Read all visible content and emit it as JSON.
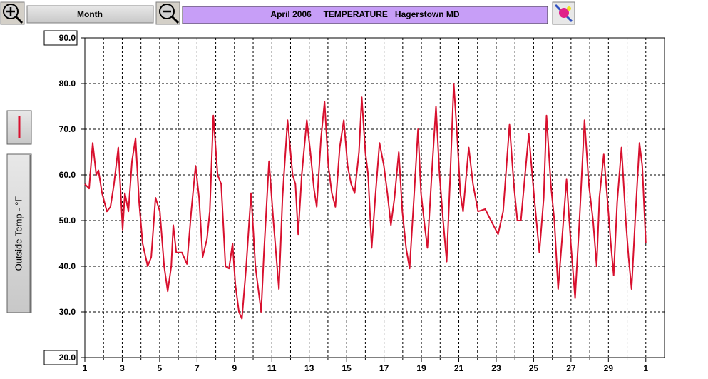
{
  "toolbar": {
    "period": "Month"
  },
  "chart_data": {
    "type": "line",
    "title": "April 2006     TEMPERATURE   Hagerstown MD",
    "y_label": "Outside Temp - °F",
    "x": [
      1.0,
      1.23,
      1.42,
      1.61,
      1.73,
      1.92,
      2.18,
      2.37,
      2.56,
      2.79,
      3.02,
      3.14,
      3.33,
      3.52,
      3.71,
      3.9,
      4.09,
      4.36,
      4.55,
      4.78,
      5.01,
      5.24,
      5.43,
      5.62,
      5.73,
      5.89,
      6.19,
      6.46,
      6.69,
      6.92,
      7.11,
      7.3,
      7.53,
      7.68,
      7.87,
      8.1,
      8.29,
      8.52,
      8.71,
      8.9,
      9.05,
      9.24,
      9.4,
      9.63,
      9.89,
      10.12,
      10.43,
      10.58,
      10.85,
      11.08,
      11.38,
      11.57,
      11.84,
      12.11,
      12.26,
      12.41,
      12.6,
      12.87,
      13.06,
      13.25,
      13.4,
      13.63,
      13.82,
      14.02,
      14.21,
      14.4,
      14.63,
      14.85,
      15.05,
      15.24,
      15.43,
      15.66,
      15.81,
      16.0,
      16.15,
      16.34,
      16.53,
      16.76,
      16.99,
      17.18,
      17.37,
      17.56,
      17.79,
      17.98,
      18.18,
      18.37,
      18.6,
      18.82,
      18.98,
      19.17,
      19.32,
      19.55,
      19.78,
      19.97,
      20.16,
      20.35,
      20.54,
      20.73,
      20.92,
      21.08,
      21.23,
      21.53,
      21.76,
      22.03,
      22.41,
      22.72,
      23.1,
      23.37,
      23.71,
      23.94,
      24.13,
      24.32,
      24.74,
      25.01,
      25.31,
      25.54,
      25.69,
      25.92,
      26.11,
      26.31,
      26.5,
      26.76,
      26.99,
      27.22,
      27.45,
      27.72,
      27.95,
      28.18,
      28.37,
      28.52,
      28.75,
      28.94,
      29.13,
      29.28,
      29.47,
      29.7,
      29.93,
      30.08,
      30.24,
      30.43,
      30.66,
      30.81,
      31.0
    ],
    "series": [
      {
        "color": "#d8102e",
        "values": [
          58,
          57,
          67,
          60,
          61,
          56,
          52,
          53,
          58,
          66,
          48,
          56,
          52,
          63,
          68,
          54,
          45,
          40,
          42,
          55,
          52,
          40,
          34.5,
          40,
          49,
          43,
          43,
          40.5,
          52,
          62,
          55,
          42,
          46,
          52,
          73,
          60,
          58,
          40,
          39.5,
          45,
          36,
          30,
          28.5,
          40,
          56,
          40,
          30,
          43,
          63,
          50,
          35,
          55,
          72,
          60,
          58,
          47,
          60,
          72,
          65,
          57,
          53,
          68,
          76,
          62,
          56,
          53,
          66,
          72,
          62,
          58,
          56,
          65,
          77,
          65,
          60,
          44,
          55,
          67,
          62,
          56,
          49,
          55,
          65,
          52,
          44,
          39.5,
          55,
          70,
          56,
          49,
          44,
          60,
          75,
          60,
          50,
          41,
          60,
          80,
          68,
          56,
          52,
          66,
          58,
          52,
          52.5,
          50,
          47,
          52,
          71,
          58,
          50,
          50,
          69,
          56,
          43,
          55,
          73,
          58,
          50,
          35,
          45,
          59,
          45,
          33,
          50,
          72,
          58,
          50,
          40,
          55,
          64.5,
          55,
          45,
          38,
          54,
          66,
          50,
          42,
          35,
          50,
          67,
          62,
          45
        ]
      }
    ],
    "xlim": [
      1,
      32
    ],
    "xticks": [
      1,
      3,
      5,
      7,
      9,
      11,
      13,
      15,
      17,
      19,
      21,
      23,
      25,
      27,
      29,
      {
        "value": 31,
        "label": "1"
      }
    ],
    "x_minor_ticks": [
      2,
      4,
      6,
      8,
      10,
      12,
      14,
      16,
      18,
      20,
      22,
      24,
      26,
      28,
      30
    ],
    "ylim": [
      20,
      90
    ],
    "yticks": [
      {
        "value": 20,
        "label": "20.0"
      },
      {
        "value": 30,
        "label": "30.0"
      },
      {
        "value": 40,
        "label": "40.0"
      },
      {
        "value": 50,
        "label": "50.0"
      },
      {
        "value": 60,
        "label": "60.0"
      },
      {
        "value": 70,
        "label": "70.0"
      },
      {
        "value": 80,
        "label": "80.0"
      },
      {
        "value": 90,
        "label": "90.0"
      }
    ],
    "grid": true
  }
}
